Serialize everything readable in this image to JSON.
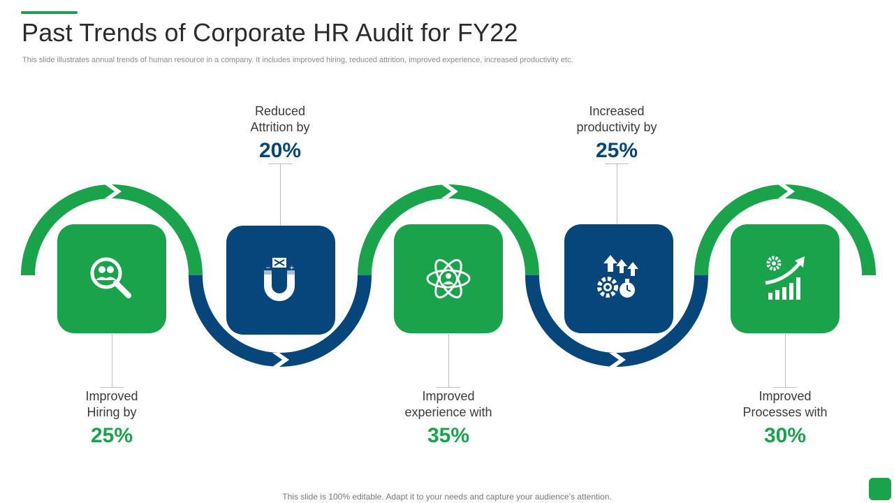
{
  "slide": {
    "title": "Past Trends of Corporate HR Audit for FY22",
    "subtitle": "This slide illustrates annual trends of human resource in a company. It includes improved hiring, reduced attrition, improved experience, increased productivity etc.",
    "footer": "This slide is 100% editable. Adapt it to your needs and capture your audience’s attention."
  },
  "colors": {
    "green": "#1aa34a",
    "blue": "#06467a"
  },
  "steps": [
    {
      "line1": "Improved",
      "line2": "Hiring by",
      "percent": "25%",
      "icon": "magnifier-people-icon",
      "color": "green"
    },
    {
      "line1": "Reduced",
      "line2": "Attrition by",
      "percent": "20%",
      "icon": "magnet-icon",
      "color": "blue"
    },
    {
      "line1": "Improved",
      "line2": "experience with",
      "percent": "35%",
      "icon": "atom-person-icon",
      "color": "green"
    },
    {
      "line1": "Increased",
      "line2": "productivity by",
      "percent": "25%",
      "icon": "gears-arrows-icon",
      "color": "blue"
    },
    {
      "line1": "Improved",
      "line2": "Processes with",
      "percent": "30%",
      "icon": "growth-chart-icon",
      "color": "green"
    }
  ]
}
